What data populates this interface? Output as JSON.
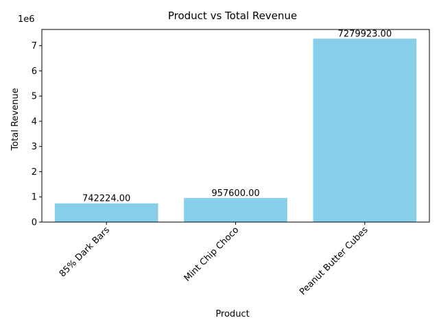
{
  "chart_data": {
    "type": "bar",
    "title": "Product vs Total Revenue",
    "xlabel": "Product",
    "ylabel": "Total Revenue",
    "y_scale_label": "1e6",
    "categories": [
      "85% Dark Bars",
      "Mint Chip Choco",
      "Peanut Butter Cubes"
    ],
    "values": [
      742224.0,
      957600.0,
      7279923.0
    ],
    "value_labels": [
      "742224.00",
      "957600.00",
      "7279923.00"
    ],
    "y_ticks": [
      "0",
      "1",
      "2",
      "3",
      "4",
      "5",
      "6",
      "7"
    ],
    "y_tick_values": [
      0,
      1000000,
      2000000,
      3000000,
      4000000,
      5000000,
      6000000,
      7000000
    ],
    "ylim": [
      0,
      7643919
    ],
    "bar_color": "#87CEEB",
    "grid": false,
    "legend": "none"
  }
}
